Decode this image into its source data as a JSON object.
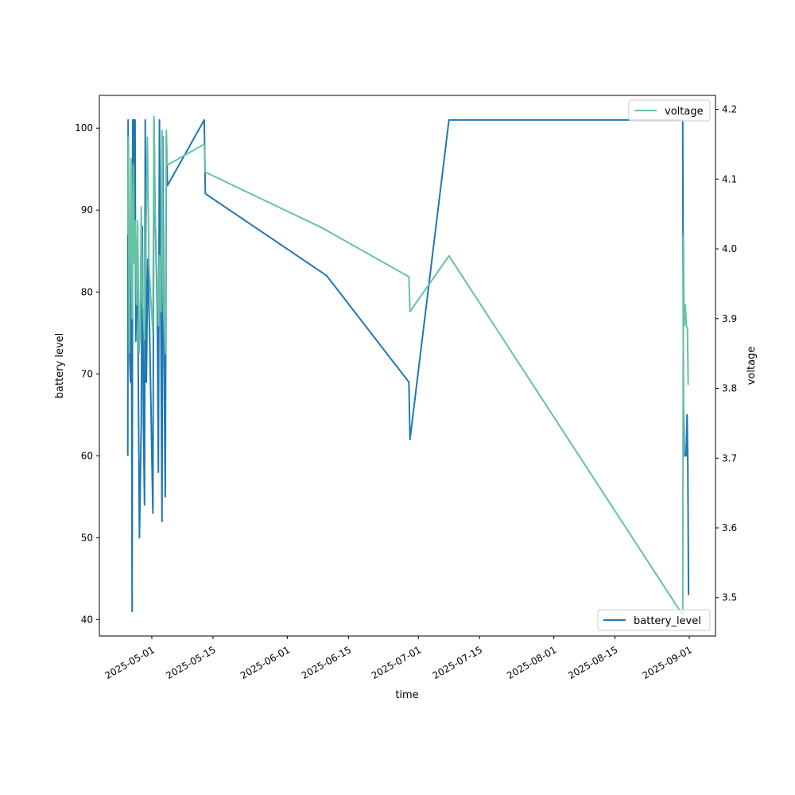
{
  "chart_data": {
    "type": "line",
    "title": "",
    "xlabel": "time",
    "ylabel_left": "battery level",
    "ylabel_right": "voltage",
    "x_tick_labels": [
      "2025-05-01",
      "2025-05-15",
      "2025-06-01",
      "2025-06-15",
      "2025-07-01",
      "2025-07-15",
      "2025-08-01",
      "2025-08-15",
      "2025-09-01"
    ],
    "y_left_ticks": [
      40,
      50,
      60,
      70,
      80,
      90,
      100
    ],
    "y_right_ticks": [
      3.5,
      3.6,
      3.7,
      3.8,
      3.9,
      4.0,
      4.1,
      4.2
    ],
    "y_left_lim": [
      38,
      104
    ],
    "y_right_lim": [
      3.445,
      4.22
    ],
    "x_lim": [
      "2025-04-19",
      "2025-09-07"
    ],
    "grid": false,
    "series": [
      {
        "name": "battery_level",
        "axis": "left",
        "color": "#1f77b4",
        "legend_position": "lower-right",
        "points": [
          [
            "2025-04-25T12:00",
            60
          ],
          [
            "2025-04-25T14:00",
            101
          ],
          [
            "2025-04-25T16:00",
            75
          ],
          [
            "2025-04-25T18:00",
            88
          ],
          [
            "2025-04-25T20:00",
            74
          ],
          [
            "2025-04-26T03:00",
            69
          ],
          [
            "2025-04-26T08:00",
            84
          ],
          [
            "2025-04-26T12:00",
            41
          ],
          [
            "2025-04-26T15:00",
            101
          ],
          [
            "2025-04-26T18:00",
            90
          ],
          [
            "2025-04-26T21:00",
            101
          ],
          [
            "2025-04-27T00:00",
            84
          ],
          [
            "2025-04-27T04:00",
            101
          ],
          [
            "2025-04-27T08:00",
            74
          ],
          [
            "2025-04-27T14:00",
            84
          ],
          [
            "2025-04-27T20:00",
            75
          ],
          [
            "2025-04-28T04:00",
            50
          ],
          [
            "2025-04-28T14:00",
            64
          ],
          [
            "2025-04-28T20:00",
            88
          ],
          [
            "2025-04-29T02:00",
            64
          ],
          [
            "2025-04-29T08:00",
            54
          ],
          [
            "2025-04-29T12:00",
            101
          ],
          [
            "2025-04-29T18:00",
            69
          ],
          [
            "2025-04-30T02:00",
            84
          ],
          [
            "2025-04-30T12:00",
            75
          ],
          [
            "2025-05-01T06:00",
            53
          ],
          [
            "2025-05-01T12:00",
            101
          ],
          [
            "2025-05-01T18:00",
            90
          ],
          [
            "2025-05-02T06:00",
            78
          ],
          [
            "2025-05-02T12:00",
            58
          ],
          [
            "2025-05-02T18:00",
            101
          ],
          [
            "2025-05-03T02:00",
            75
          ],
          [
            "2025-05-03T08:00",
            52
          ],
          [
            "2025-05-03T12:00",
            99
          ],
          [
            "2025-05-03T18:00",
            75
          ],
          [
            "2025-05-04T02:00",
            55
          ],
          [
            "2025-05-04T08:00",
            99
          ],
          [
            "2025-05-04T14:00",
            93
          ],
          [
            "2025-05-13T00:00",
            101
          ],
          [
            "2025-05-13T06:00",
            92
          ],
          [
            "2025-06-10T00:00",
            82
          ],
          [
            "2025-06-28T20:00",
            69
          ],
          [
            "2025-06-29T02:00",
            62
          ],
          [
            "2025-07-08T00:00",
            101
          ],
          [
            "2025-08-30T12:00",
            101
          ],
          [
            "2025-08-30T16:00",
            66
          ],
          [
            "2025-08-30T20:00",
            60
          ],
          [
            "2025-08-31T06:00",
            60
          ],
          [
            "2025-08-31T12:00",
            65
          ],
          [
            "2025-08-31T16:00",
            59
          ],
          [
            "2025-08-31T20:00",
            43
          ]
        ]
      },
      {
        "name": "voltage",
        "axis": "right",
        "color": "#66c2a5",
        "legend_position": "upper-right",
        "points": [
          [
            "2025-04-25T12:00",
            4.02
          ],
          [
            "2025-04-25T16:00",
            4.16
          ],
          [
            "2025-04-25T20:00",
            3.85
          ],
          [
            "2025-04-26T06:00",
            4.13
          ],
          [
            "2025-04-26T12:00",
            3.9
          ],
          [
            "2025-04-26T18:00",
            4.12
          ],
          [
            "2025-04-27T00:00",
            3.98
          ],
          [
            "2025-04-27T06:00",
            4.04
          ],
          [
            "2025-04-27T12:00",
            3.92
          ],
          [
            "2025-04-27T18:00",
            4.04
          ],
          [
            "2025-04-28T02:00",
            3.85
          ],
          [
            "2025-04-28T08:00",
            3.88
          ],
          [
            "2025-04-28T14:00",
            4.06
          ],
          [
            "2025-04-28T20:00",
            3.93
          ],
          [
            "2025-04-29T02:00",
            3.9
          ],
          [
            "2025-04-29T08:00",
            3.87
          ],
          [
            "2025-04-29T14:00",
            3.99
          ],
          [
            "2025-04-30T00:00",
            4.16
          ],
          [
            "2025-04-30T08:00",
            3.98
          ],
          [
            "2025-04-30T16:00",
            3.94
          ],
          [
            "2025-05-01T06:00",
            3.88
          ],
          [
            "2025-05-01T12:00",
            4.19
          ],
          [
            "2025-05-01T18:00",
            4.05
          ],
          [
            "2025-05-02T06:00",
            3.95
          ],
          [
            "2025-05-02T12:00",
            3.89
          ],
          [
            "2025-05-02T18:00",
            3.99
          ],
          [
            "2025-05-03T02:00",
            3.91
          ],
          [
            "2025-05-03T08:00",
            4.17
          ],
          [
            "2025-05-03T14:00",
            3.93
          ],
          [
            "2025-05-04T02:00",
            3.85
          ],
          [
            "2025-05-04T08:00",
            4.17
          ],
          [
            "2025-05-04T12:00",
            4.12
          ],
          [
            "2025-05-13T00:00",
            4.15
          ],
          [
            "2025-05-13T06:00",
            4.11
          ],
          [
            "2025-06-09T00:00",
            4.03
          ],
          [
            "2025-06-28T20:00",
            3.96
          ],
          [
            "2025-06-29T02:00",
            3.91
          ],
          [
            "2025-07-08T00:00",
            3.99
          ],
          [
            "2025-08-30T12:00",
            3.475
          ],
          [
            "2025-08-30T16:00",
            4.02
          ],
          [
            "2025-08-30T20:00",
            3.89
          ],
          [
            "2025-08-31T02:00",
            3.92
          ],
          [
            "2025-08-31T08:00",
            3.89
          ],
          [
            "2025-08-31T14:00",
            3.885
          ],
          [
            "2025-08-31T18:00",
            3.805
          ]
        ]
      }
    ]
  }
}
